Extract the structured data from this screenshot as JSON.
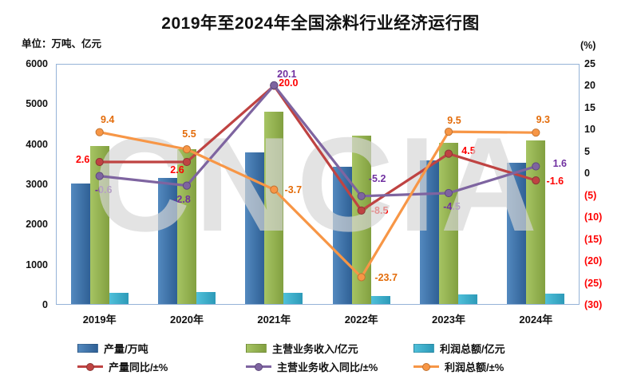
{
  "title": "2019年至2024年全国涂料行业经济运行图",
  "unit_label": "单位：万吨、亿元",
  "right_axis_unit": "(%)",
  "watermark": "CNCIA",
  "chart_data": {
    "type": "combo-bar-line",
    "title": "2019年至2024年全国涂料行业经济运行图",
    "categories": [
      "2019年",
      "2020年",
      "2021年",
      "2022年",
      "2023年",
      "2024年"
    ],
    "left_axis": {
      "label": "单位：万吨、亿元",
      "min": 0,
      "max": 6000,
      "step": 1000
    },
    "right_axis": {
      "label": "(%)",
      "min": -30,
      "max": 25,
      "step": 5,
      "negatives_shown_as": "red parentheses"
    },
    "grid": "off",
    "legend_position": "bottom",
    "bar_series": [
      {
        "name": "产量/万吨",
        "axis": "left",
        "fill": [
          "#5389bf",
          "#2f6095"
        ],
        "values": [
          3030,
          3160,
          3800,
          3430,
          3590,
          3535
        ]
      },
      {
        "name": "主营业务收入/亿元",
        "axis": "left",
        "fill": [
          "#a6c463",
          "#82a040"
        ],
        "values": [
          3950,
          3870,
          4800,
          4220,
          4030,
          4089
        ]
      },
      {
        "name": "利润总额/亿元",
        "axis": "left",
        "fill": [
          "#4fc0da",
          "#2d9ab8"
        ],
        "values": [
          300,
          310,
          300,
          228,
          250,
          273
        ]
      }
    ],
    "line_series": [
      {
        "name": "产量同比/±%",
        "axis": "right",
        "color": "#bf4342",
        "marker_border": "#8c3836",
        "label_color": "#fe0000",
        "values": [
          2.6,
          2.6,
          20.0,
          -8.5,
          4.5,
          -1.6
        ],
        "labels": [
          "2.6",
          "2.6",
          "20.0",
          "-8.5",
          "4.5",
          "-1.6"
        ]
      },
      {
        "name": "主营业务收入同比/±%",
        "axis": "right",
        "color": "#7e64a0",
        "marker_border": "#5e4a7c",
        "label_color": "#7030a0",
        "values": [
          -0.6,
          -2.8,
          20.1,
          -5.2,
          -4.5,
          1.6
        ],
        "labels": [
          "-0.6",
          "-2.8",
          "20.1",
          "-5.2",
          "-4.5",
          "1.6"
        ]
      },
      {
        "name": "利润总额/±%",
        "axis": "right",
        "color": "#f79646",
        "marker_border": "#c27331",
        "label_color": "#e36c0a",
        "values": [
          9.4,
          5.5,
          -3.7,
          -23.7,
          9.5,
          9.3
        ],
        "labels": [
          "9.4",
          "5.5",
          "-3.7",
          "-23.7",
          "9.5",
          "9.3"
        ]
      }
    ]
  }
}
